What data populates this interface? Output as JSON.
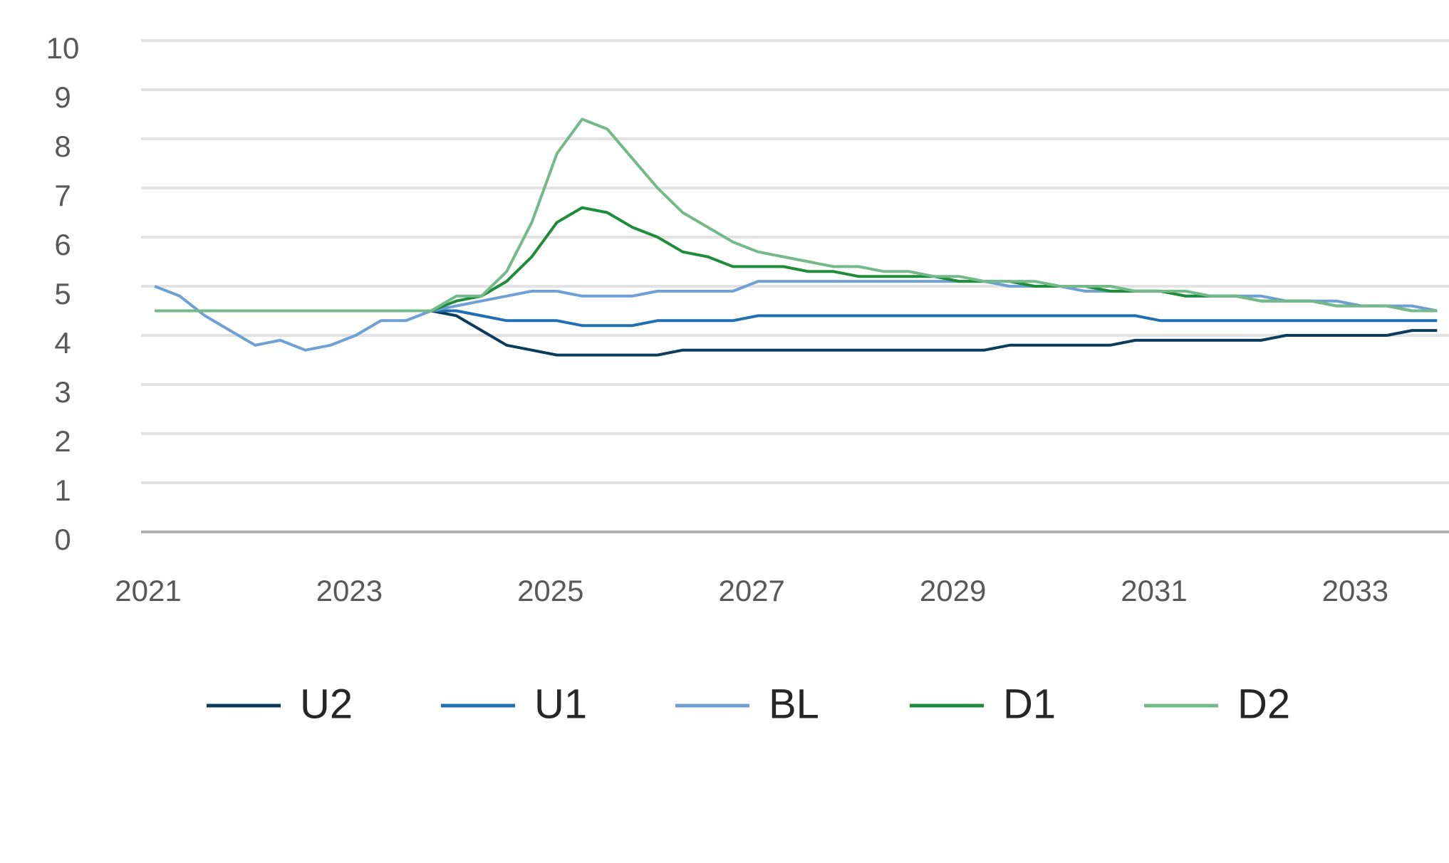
{
  "chart_data": {
    "type": "line",
    "categories": [
      "2021",
      null,
      null,
      null,
      null,
      null,
      null,
      null,
      "2023",
      null,
      null,
      null,
      null,
      null,
      null,
      null,
      "2025",
      null,
      null,
      null,
      null,
      null,
      null,
      null,
      "2027",
      null,
      null,
      null,
      null,
      null,
      null,
      null,
      "2029",
      null,
      null,
      null,
      null,
      null,
      null,
      null,
      "2031",
      null,
      null,
      null,
      null,
      null,
      null,
      null,
      "2033",
      null,
      null,
      null
    ],
    "series": [
      {
        "name": "U2",
        "color": "#0d3b5e",
        "values": [
          4.5,
          4.5,
          4.5,
          4.5,
          4.5,
          4.5,
          4.5,
          4.5,
          4.5,
          4.5,
          4.5,
          4.5,
          4.4,
          4.1,
          3.8,
          3.7,
          3.6,
          3.6,
          3.6,
          3.6,
          3.6,
          3.7,
          3.7,
          3.7,
          3.7,
          3.7,
          3.7,
          3.7,
          3.7,
          3.7,
          3.7,
          3.7,
          3.7,
          3.7,
          3.8,
          3.8,
          3.8,
          3.8,
          3.8,
          3.9,
          3.9,
          3.9,
          3.9,
          3.9,
          3.9,
          4.0,
          4.0,
          4.0,
          4.0,
          4.0,
          4.1,
          4.1
        ]
      },
      {
        "name": "U1",
        "color": "#1f6fb2",
        "values": [
          4.5,
          4.5,
          4.5,
          4.5,
          4.5,
          4.5,
          4.5,
          4.5,
          4.5,
          4.5,
          4.5,
          4.5,
          4.5,
          4.4,
          4.3,
          4.3,
          4.3,
          4.2,
          4.2,
          4.2,
          4.3,
          4.3,
          4.3,
          4.3,
          4.4,
          4.4,
          4.4,
          4.4,
          4.4,
          4.4,
          4.4,
          4.4,
          4.4,
          4.4,
          4.4,
          4.4,
          4.4,
          4.4,
          4.4,
          4.4,
          4.3,
          4.3,
          4.3,
          4.3,
          4.3,
          4.3,
          4.3,
          4.3,
          4.3,
          4.3,
          4.3,
          4.3
        ]
      },
      {
        "name": "BL",
        "color": "#6fa0d4",
        "values": [
          5.0,
          4.8,
          4.4,
          4.1,
          3.8,
          3.9,
          3.7,
          3.8,
          4.0,
          4.3,
          4.3,
          4.5,
          4.6,
          4.7,
          4.8,
          4.9,
          4.9,
          4.8,
          4.8,
          4.8,
          4.9,
          4.9,
          4.9,
          4.9,
          5.1,
          5.1,
          5.1,
          5.1,
          5.1,
          5.1,
          5.1,
          5.1,
          5.1,
          5.1,
          5.0,
          5.0,
          5.0,
          4.9,
          4.9,
          4.9,
          4.9,
          4.8,
          4.8,
          4.8,
          4.8,
          4.7,
          4.7,
          4.7,
          4.6,
          4.6,
          4.6,
          4.5
        ]
      },
      {
        "name": "D1",
        "color": "#1e8c3a",
        "values": [
          4.5,
          4.5,
          4.5,
          4.5,
          4.5,
          4.5,
          4.5,
          4.5,
          4.5,
          4.5,
          4.5,
          4.5,
          4.7,
          4.8,
          5.1,
          5.6,
          6.3,
          6.6,
          6.5,
          6.2,
          6.0,
          5.7,
          5.6,
          5.4,
          5.4,
          5.4,
          5.3,
          5.3,
          5.2,
          5.2,
          5.2,
          5.2,
          5.1,
          5.1,
          5.1,
          5.0,
          5.0,
          5.0,
          4.9,
          4.9,
          4.9,
          4.8,
          4.8,
          4.8,
          4.7,
          4.7,
          4.7,
          4.6,
          4.6,
          4.6,
          4.5,
          4.5
        ]
      },
      {
        "name": "D2",
        "color": "#74b98a",
        "values": [
          4.5,
          4.5,
          4.5,
          4.5,
          4.5,
          4.5,
          4.5,
          4.5,
          4.5,
          4.5,
          4.5,
          4.5,
          4.8,
          4.8,
          5.3,
          6.3,
          7.7,
          8.4,
          8.2,
          7.6,
          7.0,
          6.5,
          6.2,
          5.9,
          5.7,
          5.6,
          5.5,
          5.4,
          5.4,
          5.3,
          5.3,
          5.2,
          5.2,
          5.1,
          5.1,
          5.1,
          5.0,
          5.0,
          5.0,
          4.9,
          4.9,
          4.9,
          4.8,
          4.8,
          4.7,
          4.7,
          4.7,
          4.6,
          4.6,
          4.6,
          4.5,
          4.5
        ]
      }
    ],
    "ylim": [
      0,
      10
    ],
    "yticks": [
      0,
      1,
      2,
      3,
      4,
      5,
      6,
      7,
      8,
      9,
      10
    ],
    "grid": true,
    "legend": "bottom"
  }
}
